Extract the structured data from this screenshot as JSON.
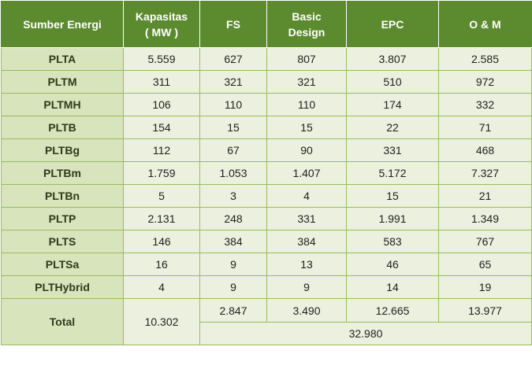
{
  "headers": {
    "source": "Sumber Energi",
    "capacity_line1": "Kapasitas",
    "capacity_line2": "( MW )",
    "fs": "FS",
    "basic_line1": "Basic",
    "basic_line2": "Design",
    "epc": "EPC",
    "om": "O & M"
  },
  "rows": [
    {
      "source": "PLTA",
      "capacity": "5.559",
      "fs": "627",
      "basic": "807",
      "epc": "3.807",
      "om": "2.585"
    },
    {
      "source": "PLTM",
      "capacity": "311",
      "fs": "321",
      "basic": "321",
      "epc": "510",
      "om": "972"
    },
    {
      "source": "PLTMH",
      "capacity": "106",
      "fs": "110",
      "basic": "110",
      "epc": "174",
      "om": "332"
    },
    {
      "source": "PLTB",
      "capacity": "154",
      "fs": "15",
      "basic": "15",
      "epc": "22",
      "om": "71"
    },
    {
      "source": "PLTBg",
      "capacity": "112",
      "fs": "67",
      "basic": "90",
      "epc": "331",
      "om": "468"
    },
    {
      "source": "PLTBm",
      "capacity": "1.759",
      "fs": "1.053",
      "basic": "1.407",
      "epc": "5.172",
      "om": "7.327"
    },
    {
      "source": "PLTBn",
      "capacity": "5",
      "fs": "3",
      "basic": "4",
      "epc": "15",
      "om": "21"
    },
    {
      "source": "PLTP",
      "capacity": "2.131",
      "fs": "248",
      "basic": "331",
      "epc": "1.991",
      "om": "1.349"
    },
    {
      "source": "PLTS",
      "capacity": "146",
      "fs": "384",
      "basic": "384",
      "epc": "583",
      "om": "767"
    },
    {
      "source": "PLTSa",
      "capacity": "16",
      "fs": "9",
      "basic": "13",
      "epc": "46",
      "om": "65"
    },
    {
      "source": "PLTHybrid",
      "capacity": "4",
      "fs": "9",
      "basic": "9",
      "epc": "14",
      "om": "19"
    }
  ],
  "total": {
    "label": "Total",
    "capacity": "10.302",
    "fs": "2.847",
    "basic": "3.490",
    "epc": "12.665",
    "om": "13.977",
    "grand_total": "32.980"
  }
}
